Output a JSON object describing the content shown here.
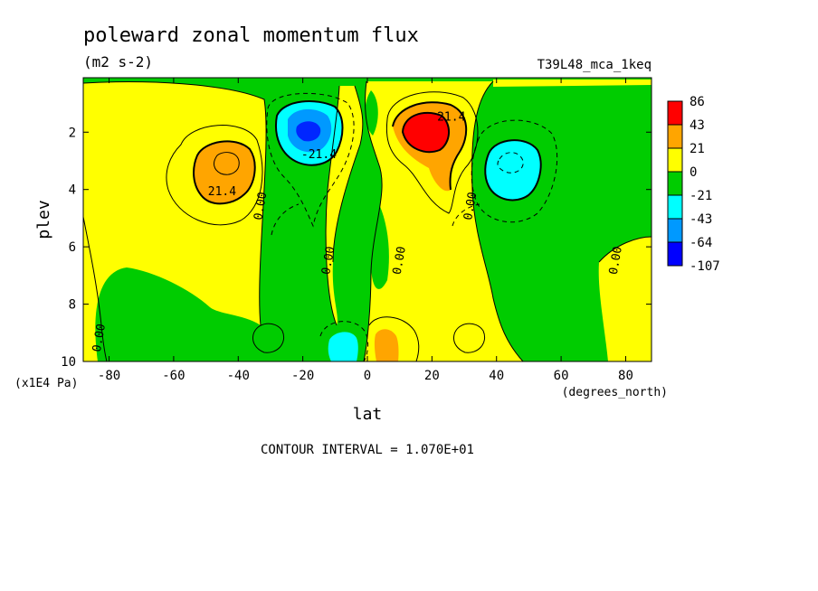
{
  "chart_data": {
    "type": "heatmap",
    "title": "poleward zonal momentum flux",
    "units": "(m2 s-2)",
    "run_label": "T39L48_mca_1keq",
    "xlabel": "lat",
    "xunits": "(degrees_north)",
    "ylabel": "plev",
    "yunits": "(x1E4 Pa)",
    "xlim": [
      -88,
      88
    ],
    "ylim": [
      10,
      0.1
    ],
    "x_ticks": [
      -80,
      -60,
      -40,
      -20,
      0,
      20,
      40,
      60,
      80
    ],
    "y_ticks": [
      2,
      4,
      6,
      8,
      10
    ],
    "contour_interval_text": "CONTOUR INTERVAL = 1.070E+01",
    "colorbar": {
      "labels": [
        "86",
        "43",
        "21",
        "0",
        "-21",
        "-43",
        "-64",
        "-107"
      ],
      "colors": [
        "#ff0000",
        "#ffa500",
        "#ffff00",
        "#00cc00",
        "#00ffff",
        "#0099ff",
        "#0000ff"
      ]
    },
    "contour_labels": [
      {
        "text": "21.4",
        "lat": -45,
        "plev": 4.2
      },
      {
        "text": "-21.4",
        "lat": -15,
        "plev": 2.9
      },
      {
        "text": "21.4",
        "lat": 26,
        "plev": 1.6
      },
      {
        "text": "0.00",
        "lat": -32,
        "plev": 4.6
      },
      {
        "text": "0.00",
        "lat": -11,
        "plev": 6.5
      },
      {
        "text": "0.00",
        "lat": 11,
        "plev": 6.5
      },
      {
        "text": "0.00",
        "lat": 33,
        "plev": 4.6
      },
      {
        "text": "0.00",
        "lat": 78,
        "plev": 6.5
      },
      {
        "text": "0.00",
        "lat": -82,
        "plev": 9.2
      }
    ]
  }
}
